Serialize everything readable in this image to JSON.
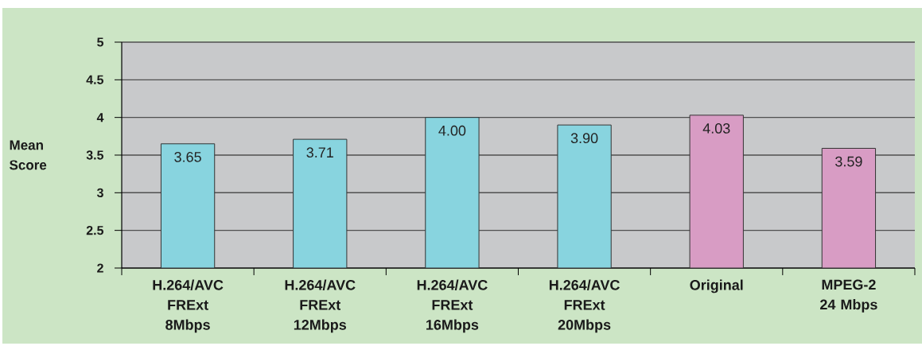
{
  "chart_data": {
    "type": "bar",
    "ylabel": "Mean Score",
    "categories": [
      "H.264/AVC FRExt 8Mbps",
      "H.264/AVC FRExt 12Mbps",
      "H.264/AVC FRExt 16Mbps",
      "H.264/AVC FRExt 20Mbps",
      "Original",
      "MPEG-2 24 Mbps"
    ],
    "values": [
      3.65,
      3.71,
      4.0,
      3.9,
      4.03,
      3.59
    ],
    "colors": [
      "#88d4df",
      "#88d4df",
      "#88d4df",
      "#88d4df",
      "#d89cc4",
      "#d89cc4"
    ],
    "value_labels": [
      "3.65",
      "3.71",
      "4.00",
      "3.90",
      "4.03",
      "3.59"
    ],
    "ylim": [
      2,
      5
    ],
    "yticks": [
      2,
      2.5,
      3,
      3.5,
      4,
      4.5,
      5
    ],
    "grid": "y"
  }
}
